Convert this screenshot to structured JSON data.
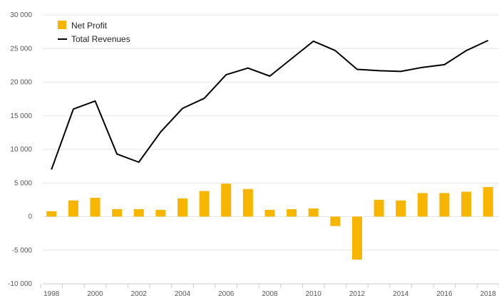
{
  "chart_data": {
    "type": "bar+line",
    "x": [
      1998,
      1999,
      2000,
      2001,
      2002,
      2003,
      2004,
      2005,
      2006,
      2007,
      2008,
      2009,
      2010,
      2011,
      2012,
      2013,
      2014,
      2015,
      2016,
      2017,
      2018
    ],
    "x_tick_labels": [
      "1998",
      "2000",
      "2002",
      "2004",
      "2006",
      "2008",
      "2010",
      "2012",
      "2014",
      "2016",
      "2018"
    ],
    "series": [
      {
        "name": "Net Profit",
        "kind": "bar",
        "color": "#f7b500",
        "values": [
          800,
          2400,
          2800,
          1100,
          1100,
          1000,
          2700,
          3800,
          4900,
          4100,
          1000,
          1100,
          1200,
          -1400,
          -6400,
          2500,
          2400,
          3500,
          3500,
          3700,
          4400
        ]
      },
      {
        "name": "Total Revenues",
        "kind": "line",
        "color": "#000000",
        "values": [
          7000,
          16000,
          17200,
          9300,
          8100,
          12600,
          16100,
          17600,
          21100,
          22100,
          20900,
          23500,
          26100,
          24700,
          21900,
          21700,
          21600,
          22200,
          22600,
          24700,
          26200
        ]
      }
    ],
    "y_ticks": [
      -10000,
      -5000,
      0,
      5000,
      10000,
      15000,
      20000,
      25000,
      30000
    ],
    "y_tick_labels": [
      "-10 000",
      "-5 000",
      "0",
      "5 000",
      "10 000",
      "15 000",
      "20 000",
      "25 000",
      "30 000"
    ],
    "ylim": [
      -10000,
      30000
    ],
    "xlim": [
      1997.6,
      2018.5
    ],
    "grid": true,
    "legend": "top-left"
  }
}
